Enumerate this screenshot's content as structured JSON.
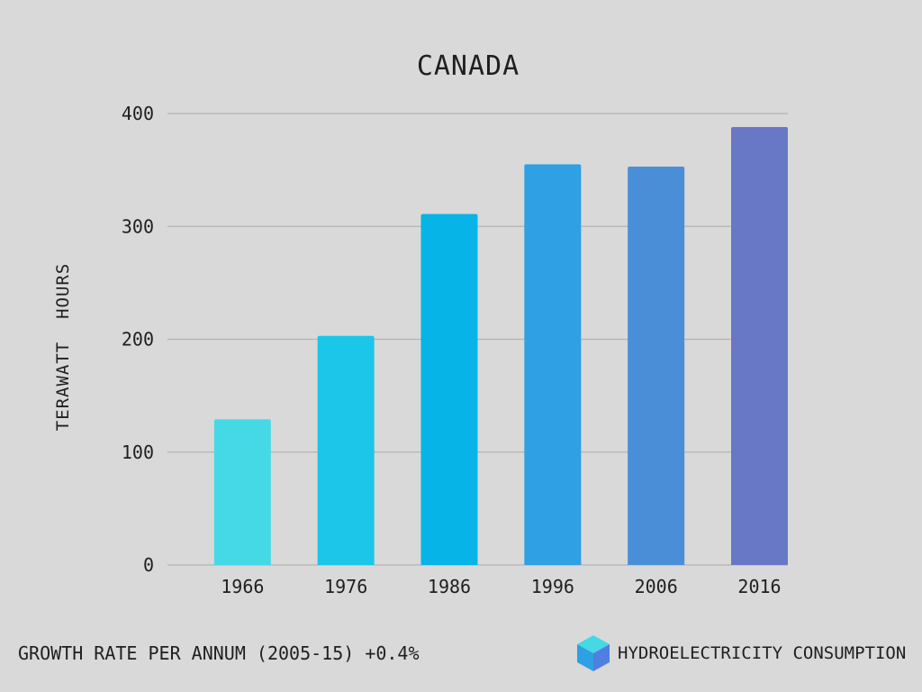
{
  "chart_data": {
    "type": "bar",
    "title": "CANADA",
    "ylabel": "TERAWATT  HOURS",
    "xlabel": "",
    "categories": [
      "1966",
      "1976",
      "1986",
      "1996",
      "2006",
      "2016"
    ],
    "values": [
      129,
      203,
      311,
      355,
      353,
      388
    ],
    "colors": [
      "#45d9e6",
      "#1bc6e8",
      "#06b4e7",
      "#2ea0e3",
      "#4b8ed8",
      "#6878c6"
    ],
    "ylim": [
      0,
      400
    ],
    "yticks": [
      0,
      100,
      200,
      300,
      400
    ],
    "grid": true,
    "grid_color": "#b3b3b3"
  },
  "footer": {
    "growth_text": "GROWTH RATE PER ANNUM (2005-15) +0.4%",
    "legend_text": "HYDROELECTRICITY CONSUMPTION",
    "legend_icon": "cube-icon"
  }
}
